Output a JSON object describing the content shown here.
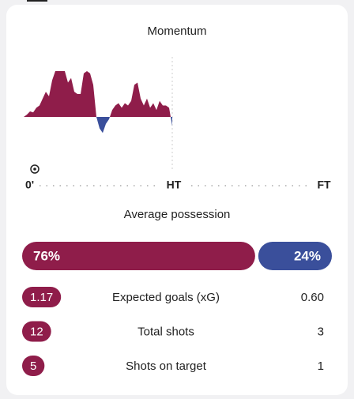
{
  "momentum": {
    "title": "Momentum",
    "values": [
      0,
      5,
      12,
      10,
      20,
      25,
      40,
      55,
      45,
      80,
      100,
      100,
      100,
      100,
      75,
      85,
      55,
      50,
      50,
      95,
      100,
      95,
      70,
      0,
      -25,
      -35,
      -15,
      -5,
      15,
      25,
      30,
      20,
      30,
      25,
      35,
      70,
      75,
      40,
      25,
      40,
      20,
      30,
      15,
      35,
      25,
      25,
      20,
      -20
    ],
    "home_color": "#8f1d4a",
    "away_color": "#3a4f9b",
    "axis_labels": [
      "0'",
      "HT",
      "FT"
    ]
  },
  "possession": {
    "title": "Average possession",
    "values": [
      76,
      24
    ],
    "value_labels": [
      "76%",
      "24%"
    ],
    "colors": [
      "#8f1d4a",
      "#3a4f9b"
    ]
  },
  "stats": [
    {
      "label": "Expected goals (xG)",
      "home": "1.17",
      "away": "0.60"
    },
    {
      "label": "Total shots",
      "home": "12",
      "away": "3"
    },
    {
      "label": "Shots on target",
      "home": "5",
      "away": "1"
    }
  ]
}
